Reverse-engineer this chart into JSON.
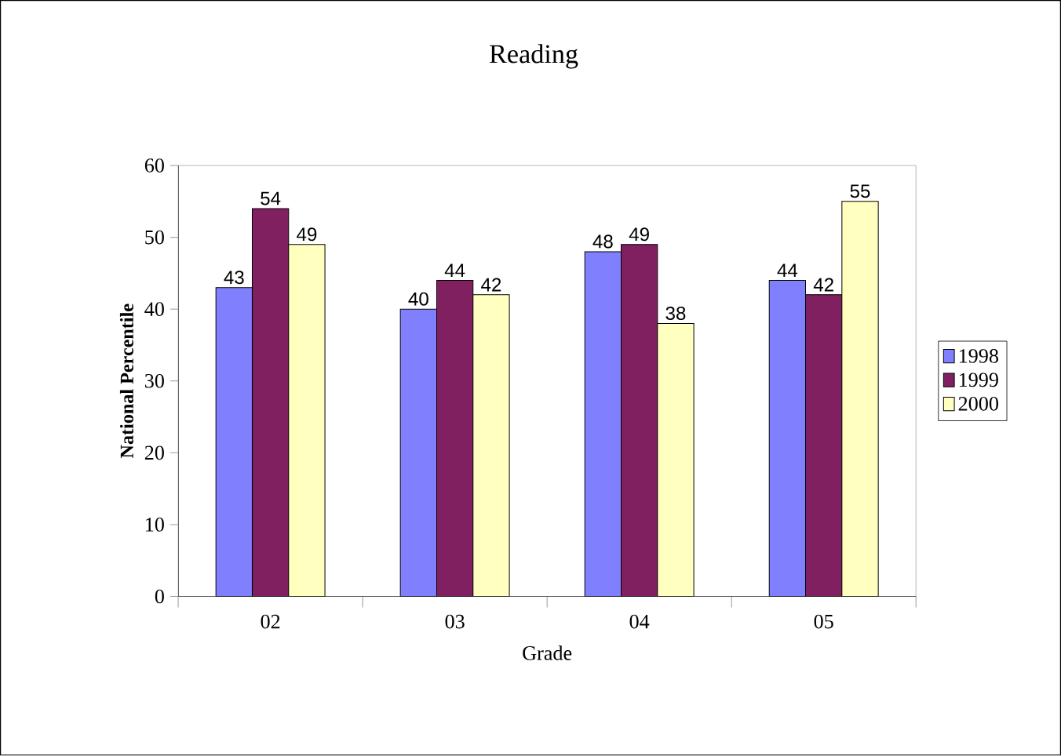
{
  "chart_data": {
    "type": "bar",
    "title": "Reading",
    "xlabel": "Grade",
    "ylabel": "National Percentile",
    "categories": [
      "02",
      "03",
      "04",
      "05"
    ],
    "series": [
      {
        "name": "1998",
        "color": "#8080ff",
        "values": [
          43,
          40,
          48,
          44
        ]
      },
      {
        "name": "1999",
        "color": "#802060",
        "values": [
          54,
          44,
          49,
          42
        ]
      },
      {
        "name": "2000",
        "color": "#ffffc0",
        "values": [
          49,
          42,
          38,
          55
        ]
      }
    ],
    "ylim": [
      0,
      60
    ],
    "yticks": [
      0,
      10,
      20,
      30,
      40,
      50,
      60
    ],
    "data_labels": true,
    "legend": "right",
    "grid": false
  }
}
